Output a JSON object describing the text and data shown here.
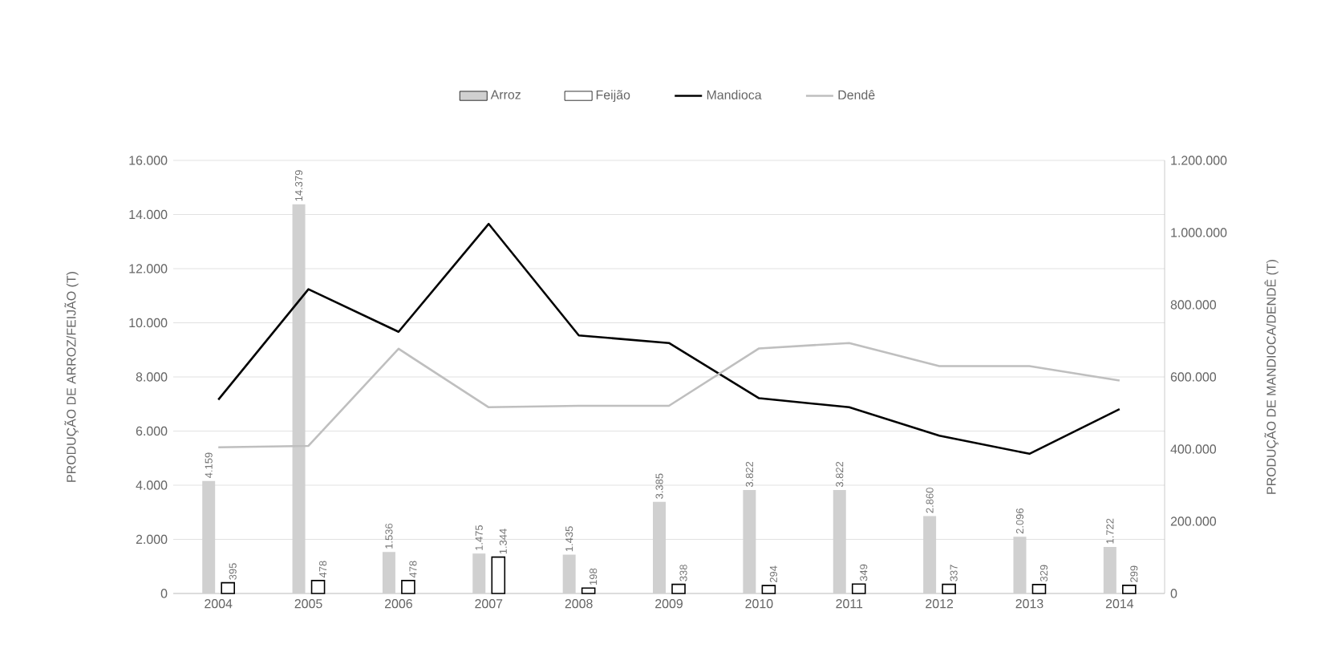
{
  "chart_data": {
    "type": "bar",
    "xlabel": null,
    "ylabel": "PRODUÇÃO DE ARROZ/FEIJÃO (T)",
    "y2label": "PRODUÇÃO DE MANDIOCA/DENDÊ (T)",
    "categories": [
      "2004",
      "2005",
      "2006",
      "2007",
      "2008",
      "2009",
      "2010",
      "2011",
      "2012",
      "2013",
      "2014"
    ],
    "series": [
      {
        "name": "Arroz",
        "color": "#d0d0d0",
        "values": [
          4159,
          14379,
          1536,
          1475,
          1435,
          3385,
          3822,
          3822,
          2860,
          2096,
          1722
        ],
        "value_labels": [
          "4.159",
          "14.379",
          "1.536",
          "1.475",
          "1.435",
          "3.385",
          "3.822",
          "3.822",
          "2.860",
          "2.096",
          "1.722"
        ]
      },
      {
        "name": "Feijão",
        "type": "bar",
        "color": "#000000",
        "values": [
          395,
          478,
          478,
          1344,
          198,
          338,
          294,
          349,
          337,
          329,
          299
        ],
        "value_labels": [
          "395",
          "478",
          "478",
          "1.344",
          "198",
          "338",
          "294",
          "349",
          "337",
          "329",
          "299"
        ]
      },
      {
        "name": "Mandioca",
        "type": "line",
        "axis": "y2",
        "color": "#000000",
        "values": [
          537000,
          843000,
          725000,
          1024000,
          715000,
          694000,
          541000,
          516000,
          437000,
          387000,
          511000
        ]
      },
      {
        "name": "Dendê",
        "type": "line",
        "axis": "y2",
        "color": "#bfbfbf",
        "values": [
          405000,
          409000,
          678000,
          516000,
          520000,
          520000,
          679000,
          694000,
          630000,
          630000,
          590000
        ]
      }
    ],
    "ylim": [
      0,
      16000
    ],
    "yticks": [
      {
        "value": 0,
        "label": "0"
      },
      {
        "value": 2000,
        "label": "2.000"
      },
      {
        "value": 4000,
        "label": "4.000"
      },
      {
        "value": 6000,
        "label": "6.000"
      },
      {
        "value": 8000,
        "label": "8.000"
      },
      {
        "value": 10000,
        "label": "10.000"
      },
      {
        "value": 12000,
        "label": "12.000"
      },
      {
        "value": 14000,
        "label": "14.000"
      },
      {
        "value": 16000,
        "label": "16.000"
      }
    ],
    "y2lim": [
      0,
      1200000
    ],
    "y2ticks": [
      {
        "value": 0,
        "label": "0"
      },
      {
        "value": 200000,
        "label": "200.000"
      },
      {
        "value": 400000,
        "label": "400.000"
      },
      {
        "value": 600000,
        "label": "600.000"
      },
      {
        "value": 800000,
        "label": "800.000"
      },
      {
        "value": 1000000,
        "label": "1.000.000"
      },
      {
        "value": 1200000,
        "label": "1.200.000"
      }
    ],
    "grid": "y",
    "legend": "top",
    "marker": "none",
    "line_style": "solid"
  }
}
